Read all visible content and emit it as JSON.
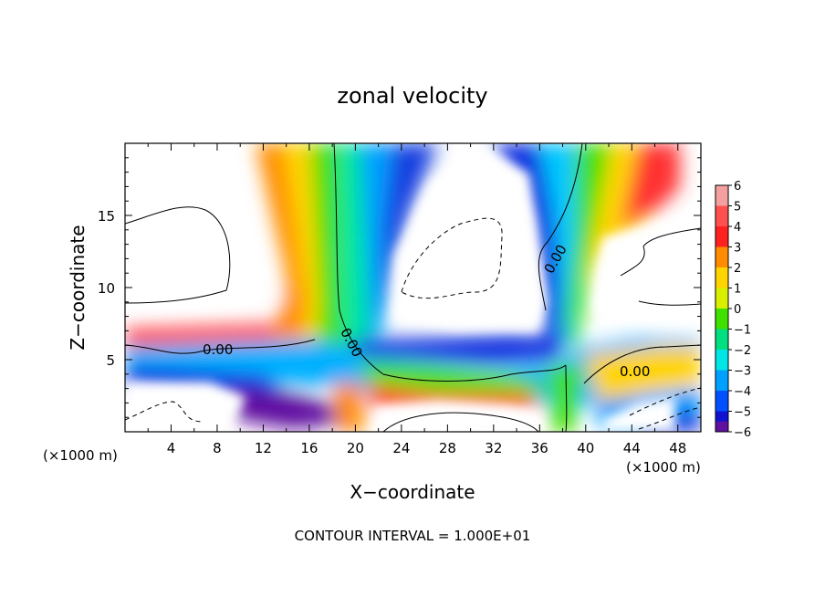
{
  "chart_data": {
    "type": "heatmap",
    "title": "zonal velocity",
    "xlabel": "X−coordinate",
    "ylabel": "Z−coordinate",
    "x_unit_left": "(×1000 m)",
    "x_unit_right": "(×1000 m)",
    "footer": "CONTOUR INTERVAL = 1.000E+01",
    "xlim": [
      0,
      50
    ],
    "ylim": [
      0,
      20
    ],
    "x_ticks": [
      "4",
      "8",
      "12",
      "16",
      "20",
      "24",
      "28",
      "32",
      "36",
      "40",
      "44",
      "48"
    ],
    "y_ticks": [
      "5",
      "10",
      "15"
    ],
    "colorbar": {
      "levels": [
        "6",
        "5",
        "4",
        "3",
        "2",
        "1",
        "0",
        "−1",
        "−2",
        "−3",
        "−4",
        "−5",
        "−6"
      ],
      "colors": [
        "#f4a0a0",
        "#ff5050",
        "#ff2020",
        "#ff8c00",
        "#ffd400",
        "#d8f000",
        "#40e000",
        "#00e080",
        "#00e6e6",
        "#00a0ff",
        "#0050ff",
        "#1010d0",
        "#6010a0"
      ],
      "range": [
        -6,
        6
      ]
    },
    "contour_labels": [
      "0.00",
      "0.00",
      "0.00",
      "0.00"
    ]
  }
}
